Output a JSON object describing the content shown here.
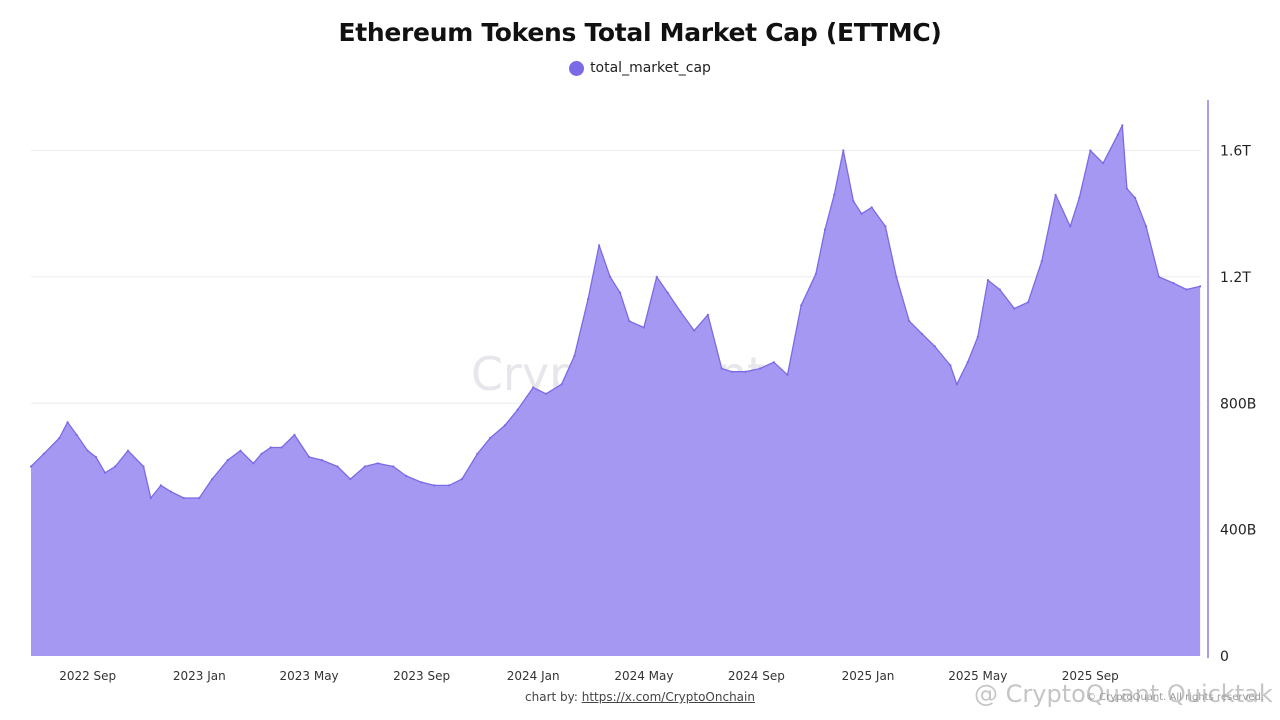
{
  "chart_data": {
    "type": "area",
    "title": "Ethereum Tokens Total Market Cap (ETTMC)",
    "legend": {
      "placement": "top-center",
      "entries": [
        "total_market_cap"
      ]
    },
    "series": [
      {
        "name": "total_market_cap",
        "color": "#7b6ae6",
        "fill": "#a498f2",
        "x": [
          "2022-07-01",
          "2022-07-15",
          "2022-08-01",
          "2022-08-10",
          "2022-08-20",
          "2022-09-01",
          "2022-09-10",
          "2022-09-20",
          "2022-10-01",
          "2022-10-15",
          "2022-11-01",
          "2022-11-09",
          "2022-11-20",
          "2022-12-01",
          "2022-12-15",
          "2023-01-01",
          "2023-01-15",
          "2023-02-01",
          "2023-02-15",
          "2023-03-01",
          "2023-03-10",
          "2023-03-20",
          "2023-04-01",
          "2023-04-15",
          "2023-05-01",
          "2023-05-15",
          "2023-06-01",
          "2023-06-15",
          "2023-07-01",
          "2023-07-15",
          "2023-08-01",
          "2023-08-15",
          "2023-09-01",
          "2023-09-15",
          "2023-10-01",
          "2023-10-15",
          "2023-11-01",
          "2023-11-15",
          "2023-12-01",
          "2023-12-15",
          "2024-01-01",
          "2024-01-15",
          "2024-02-01",
          "2024-02-15",
          "2024-03-01",
          "2024-03-13",
          "2024-03-25",
          "2024-04-05",
          "2024-04-15",
          "2024-05-01",
          "2024-05-15",
          "2024-05-27",
          "2024-06-10",
          "2024-06-25",
          "2024-07-10",
          "2024-07-25",
          "2024-08-05",
          "2024-08-20",
          "2024-09-05",
          "2024-09-20",
          "2024-10-05",
          "2024-10-20",
          "2024-11-05",
          "2024-11-15",
          "2024-11-25",
          "2024-12-05",
          "2024-12-16",
          "2024-12-25",
          "2025-01-05",
          "2025-01-20",
          "2025-02-01",
          "2025-02-15",
          "2025-03-01",
          "2025-03-15",
          "2025-04-01",
          "2025-04-08",
          "2025-04-20",
          "2025-05-01",
          "2025-05-12",
          "2025-05-25",
          "2025-06-10",
          "2025-06-25",
          "2025-07-10",
          "2025-07-25",
          "2025-08-10",
          "2025-08-20",
          "2025-09-01",
          "2025-09-15",
          "2025-10-01",
          "2025-10-06",
          "2025-10-11",
          "2025-10-20",
          "2025-11-01",
          "2025-11-15",
          "2025-12-01",
          "2025-12-15",
          "2025-12-30"
        ],
        "values": [
          600,
          640,
          690,
          740,
          700,
          650,
          630,
          580,
          600,
          650,
          600,
          500,
          540,
          520,
          500,
          500,
          560,
          620,
          650,
          610,
          640,
          660,
          660,
          700,
          630,
          620,
          600,
          560,
          600,
          610,
          600,
          570,
          550,
          540,
          540,
          560,
          640,
          690,
          730,
          780,
          850,
          830,
          860,
          950,
          1130,
          1300,
          1200,
          1150,
          1060,
          1040,
          1200,
          1150,
          1090,
          1030,
          1080,
          910,
          900,
          900,
          910,
          930,
          890,
          1110,
          1210,
          1350,
          1460,
          1600,
          1440,
          1400,
          1420,
          1360,
          1200,
          1060,
          1020,
          980,
          920,
          860,
          930,
          1010,
          1190,
          1160,
          1100,
          1120,
          1250,
          1460,
          1360,
          1450,
          1600,
          1560,
          1650,
          1680,
          1480,
          1450,
          1360,
          1200,
          1180,
          1160,
          1170
        ]
      }
    ],
    "x_ticks": [
      "2022 Sep",
      "2023 Jan",
      "2023 May",
      "2023 Sep",
      "2024 Jan",
      "2024 May",
      "2024 Sep",
      "2025 Jan",
      "2025 May",
      "2025 Sep"
    ],
    "y_ticks": [
      "0",
      "400B",
      "800B",
      "1.2T",
      "1.6T"
    ],
    "ylim": [
      0,
      1760
    ],
    "y_unit": "B",
    "grid": true
  },
  "watermark": "CryptoQuant",
  "credit": {
    "prefix": "chart by: ",
    "link_text": "https://x.com/CryptoOnchain"
  },
  "copyright": "© CryptoQuant. All rights reserved.",
  "overlay_watermark": "@ CryptoQuant Quicktak..."
}
